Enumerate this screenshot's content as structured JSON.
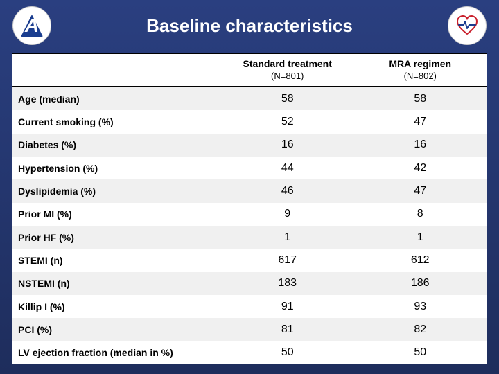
{
  "title": "Baseline characteristics",
  "columns": {
    "c1_line1": "Standard treatment",
    "c1_line2": "(N=801)",
    "c2_line1": "MRA regimen",
    "c2_line2": "(N=802)"
  },
  "rows": [
    {
      "label": "Age (median)",
      "c1": "58",
      "c2": "58"
    },
    {
      "label": "Current smoking (%)",
      "c1": "52",
      "c2": "47"
    },
    {
      "label": "Diabetes (%)",
      "c1": "16",
      "c2": "16"
    },
    {
      "label": "Hypertension (%)",
      "c1": "44",
      "c2": "42"
    },
    {
      "label": "Dyslipidemia (%)",
      "c1": "46",
      "c2": "47"
    },
    {
      "label": "Prior MI (%)",
      "c1": "9",
      "c2": "8"
    },
    {
      "label": "Prior HF (%)",
      "c1": "1",
      "c2": "1"
    },
    {
      "label": "STEMI (n)",
      "c1": "617",
      "c2": "612"
    },
    {
      "label": "NSTEMI (n)",
      "c1": "183",
      "c2": "186"
    },
    {
      "label": "Killip I (%)",
      "c1": "91",
      "c2": "93"
    },
    {
      "label": "PCI (%)",
      "c1": "81",
      "c2": "82"
    },
    {
      "label": "LV ejection fraction (median in %)",
      "c1": "50",
      "c2": "50"
    }
  ],
  "style": {
    "slide_bg_top": "#2a3f80",
    "slide_bg_bottom": "#1e2d5c",
    "title_color": "#ffffff",
    "table_bg": "#ffffff",
    "row_alt_bg": "#f0f0f0",
    "header_border": "#000000",
    "label_fontweight": "bold",
    "value_fontsize": 16,
    "label_fontsize": 14
  }
}
